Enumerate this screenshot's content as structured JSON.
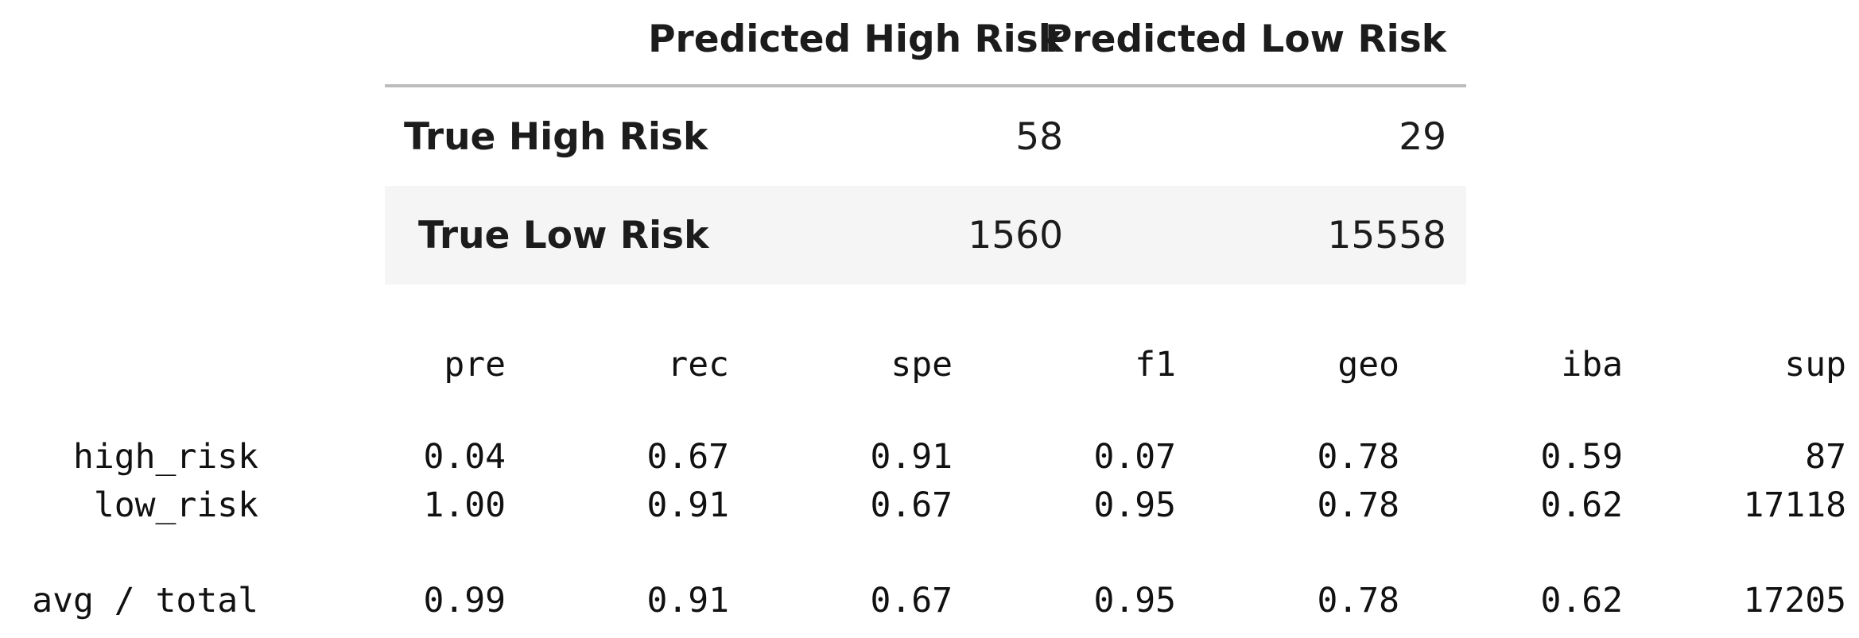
{
  "confusion_matrix": {
    "columns": [
      "Predicted High Risk",
      "Predicted Low Risk"
    ],
    "rows": [
      {
        "label": "True High Risk",
        "values": [
          "58",
          "29"
        ]
      },
      {
        "label": "True Low Risk",
        "values": [
          "1560",
          "15558"
        ]
      }
    ]
  },
  "classification_report": {
    "headers": [
      "pre",
      "rec",
      "spe",
      "f1",
      "geo",
      "iba",
      "sup"
    ],
    "rows": [
      {
        "label": "high_risk",
        "values": [
          "0.04",
          "0.67",
          "0.91",
          "0.07",
          "0.78",
          "0.59",
          "87"
        ]
      },
      {
        "label": "low_risk",
        "values": [
          "1.00",
          "0.91",
          "0.67",
          "0.95",
          "0.78",
          "0.62",
          "17118"
        ]
      }
    ],
    "total": {
      "label": "avg / total",
      "values": [
        "0.99",
        "0.91",
        "0.67",
        "0.95",
        "0.78",
        "0.62",
        "17205"
      ]
    }
  }
}
